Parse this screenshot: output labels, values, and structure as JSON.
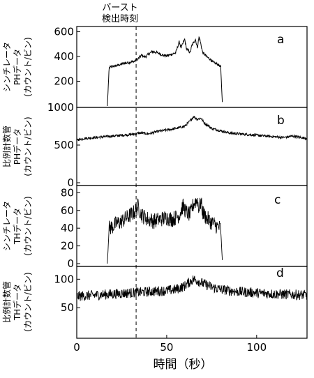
{
  "chart_data": {
    "type": "line",
    "burst_label": [
      "バースト",
      "検出時刻"
    ],
    "burst_time": 33,
    "xlabel": "時間（秒）",
    "x_ticks": [
      0,
      50,
      100
    ],
    "xlim": [
      0,
      128
    ],
    "panels": [
      {
        "letter": "a",
        "ylabel": [
          "シンチレータ",
          "PHデータ",
          "(カウント/ビン)"
        ],
        "y_ticks": [
          200,
          400,
          600
        ],
        "ylim": [
          0,
          620
        ],
        "series": {
          "x": [
            17,
            18,
            20,
            22,
            25,
            28,
            30,
            32,
            34,
            36,
            38,
            40,
            42,
            45,
            48,
            50,
            53,
            55,
            57,
            58,
            60,
            61,
            62,
            63,
            64,
            66,
            67,
            68,
            69,
            70,
            71,
            72,
            74,
            76,
            78,
            80,
            81
          ],
          "y": [
            0,
            310,
            320,
            325,
            340,
            350,
            355,
            360,
            380,
            410,
            395,
            420,
            440,
            430,
            410,
            405,
            420,
            430,
            520,
            470,
            540,
            460,
            450,
            430,
            490,
            540,
            470,
            560,
            500,
            430,
            420,
            400,
            380,
            350,
            340,
            320,
            0
          ]
        }
      },
      {
        "letter": "b",
        "ylabel": [
          "比例計数管",
          "PHデータ",
          "(カウント/ビン)"
        ],
        "y_ticks": [
          0,
          500,
          1000
        ],
        "ylim": [
          0,
          1000
        ],
        "series": {
          "x": [
            0,
            5,
            10,
            15,
            20,
            25,
            30,
            35,
            40,
            45,
            50,
            55,
            60,
            63,
            65,
            67,
            69,
            71,
            73,
            75,
            80,
            85,
            90,
            95,
            100,
            105,
            110,
            115,
            120,
            125,
            128
          ],
          "y": [
            570,
            590,
            600,
            610,
            620,
            630,
            640,
            660,
            650,
            680,
            700,
            720,
            750,
            820,
            880,
            840,
            860,
            790,
            760,
            720,
            690,
            660,
            650,
            640,
            630,
            620,
            610,
            600,
            620,
            600,
            590
          ]
        }
      },
      {
        "letter": "c",
        "ylabel": [
          "シンチレータ",
          "THデータ",
          "(カウント/ビン)"
        ],
        "y_ticks": [
          0,
          20,
          40,
          60,
          80
        ],
        "ylim": [
          0,
          85
        ],
        "series": {
          "x": [
            17,
            18,
            20,
            22,
            25,
            28,
            30,
            32,
            34,
            36,
            38,
            40,
            43,
            46,
            50,
            53,
            55,
            57,
            59,
            61,
            63,
            65,
            67,
            68,
            69,
            70,
            72,
            74,
            76,
            78,
            80,
            81
          ],
          "y": [
            0,
            40,
            42,
            45,
            48,
            52,
            55,
            58,
            65,
            55,
            52,
            50,
            48,
            50,
            52,
            50,
            52,
            55,
            65,
            58,
            55,
            68,
            72,
            62,
            70,
            58,
            52,
            48,
            45,
            42,
            40,
            0
          ]
        }
      },
      {
        "letter": "d",
        "ylabel": [
          "比例計数管",
          "THデータ",
          "(カウント/ビン)"
        ],
        "y_ticks": [
          50,
          100
        ],
        "ylim": [
          0,
          120
        ],
        "series": {
          "x": [
            0,
            10,
            20,
            30,
            40,
            50,
            55,
            60,
            63,
            65,
            67,
            69,
            72,
            75,
            80,
            90,
            100,
            110,
            120,
            128
          ],
          "y": [
            70,
            72,
            74,
            76,
            78,
            80,
            82,
            88,
            96,
            100,
            98,
            94,
            90,
            86,
            82,
            78,
            76,
            74,
            73,
            72
          ]
        }
      }
    ]
  }
}
